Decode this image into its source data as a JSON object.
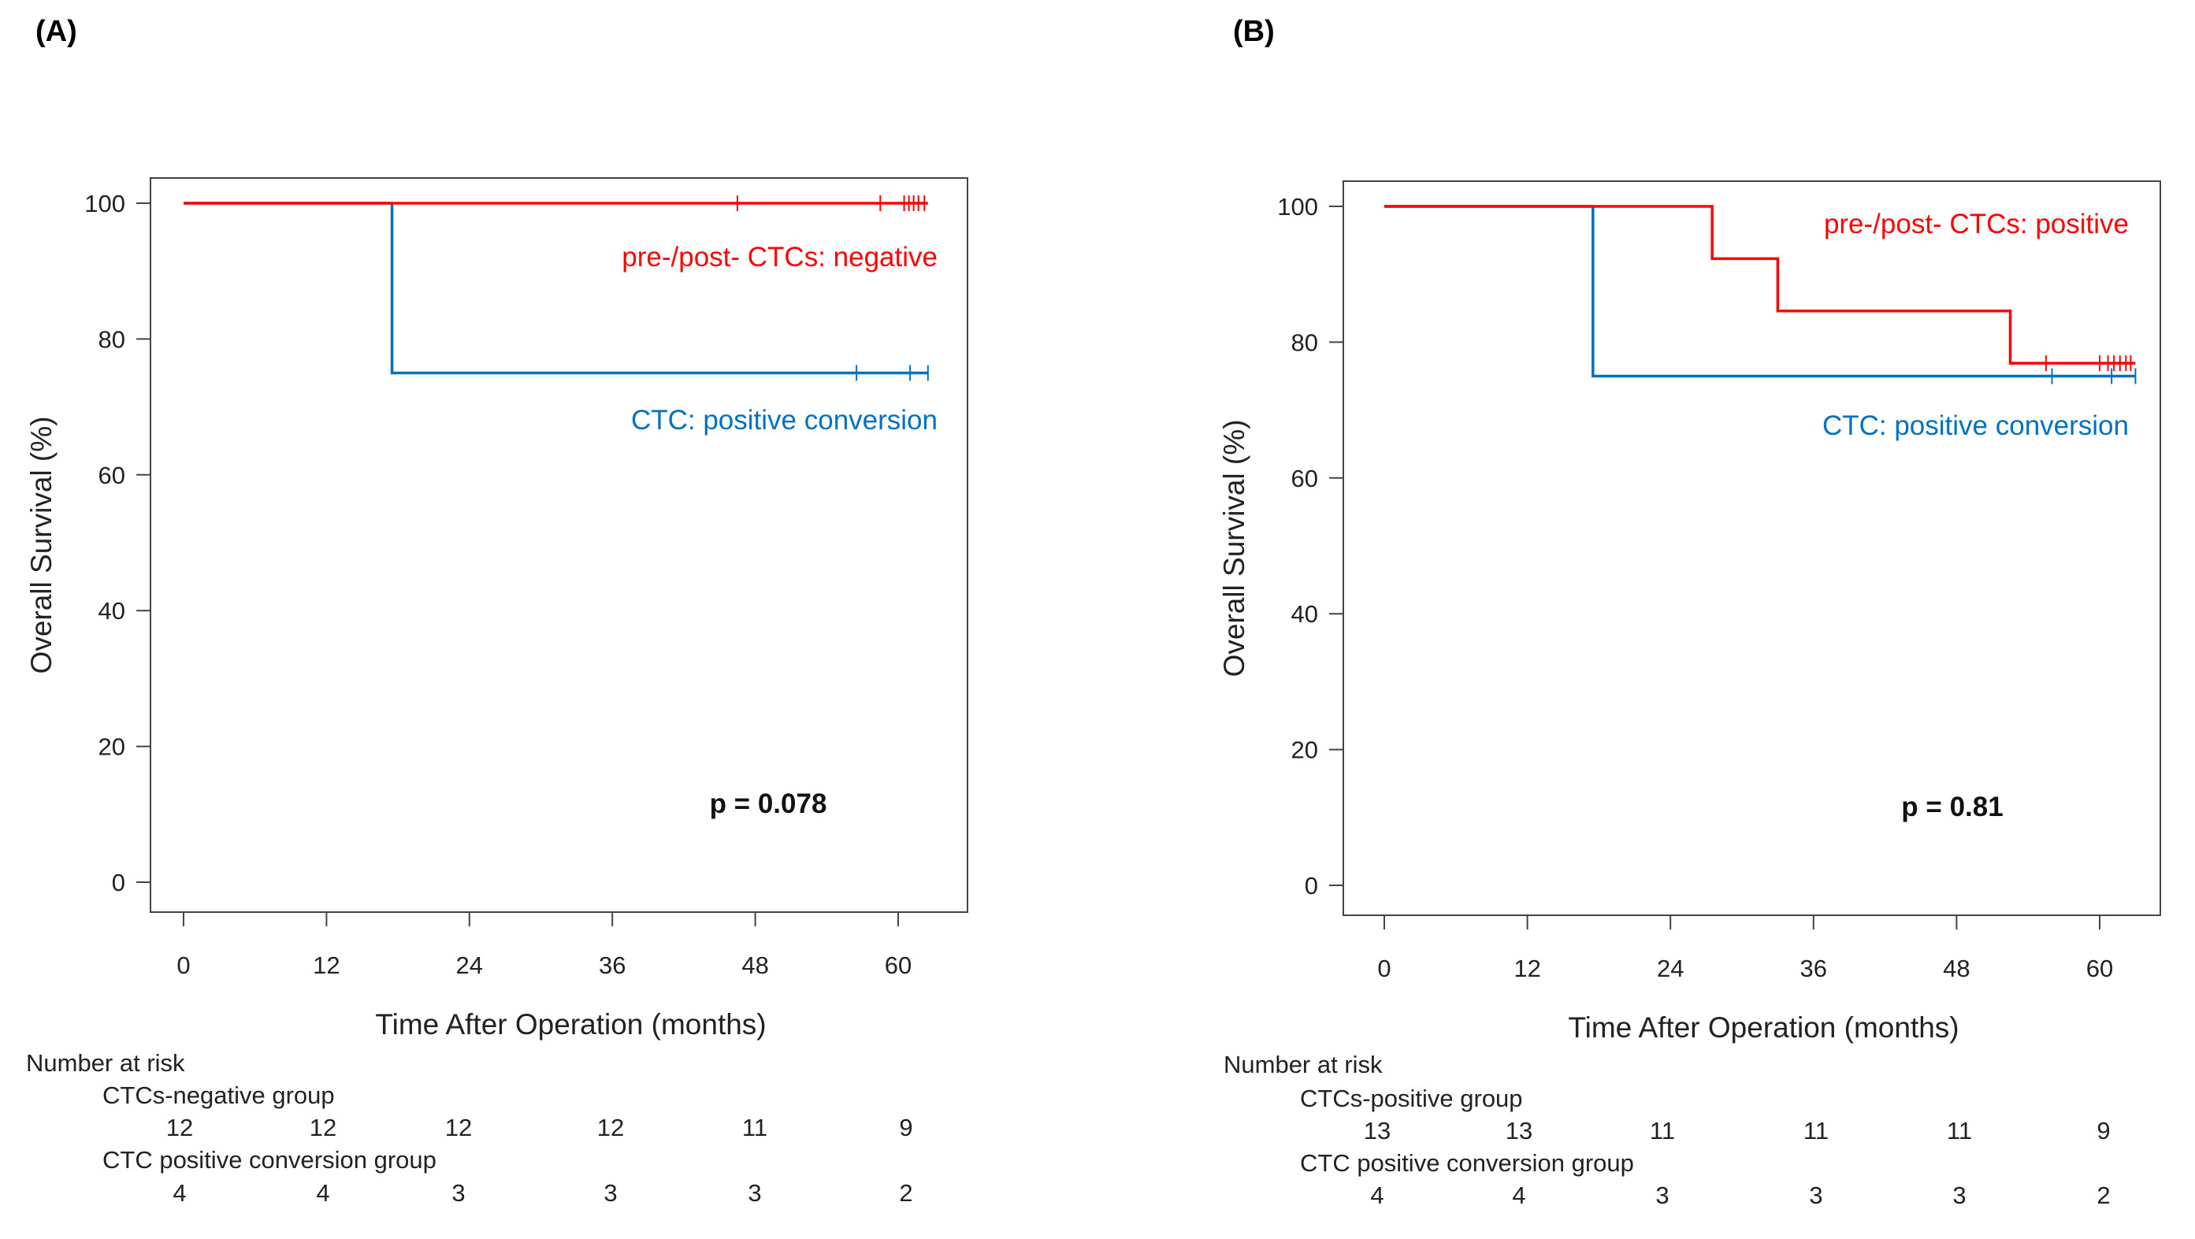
{
  "chart_data": [
    {
      "type": "line",
      "panel_label": "(A)",
      "title": "",
      "xlabel": "Time After Operation (months)",
      "ylabel": "Overall Survival (%)",
      "xlim": [
        0,
        62
      ],
      "ylim": [
        0,
        100
      ],
      "xticks": [
        0,
        12,
        24,
        36,
        48,
        60
      ],
      "yticks": [
        0,
        20,
        40,
        60,
        80,
        100
      ],
      "p_value": "p = 0.078",
      "series": [
        {
          "name": "pre-/post- CTCs: negative",
          "color": "#ff0000",
          "steps": [
            [
              0,
              100
            ],
            [
              62.5,
              100
            ]
          ],
          "censor_times": [
            46.5,
            58.5,
            60.5,
            60.9,
            61.3,
            61.7,
            62.2
          ]
        },
        {
          "name": "CTC: positive conversion",
          "color": "#0070c0",
          "steps": [
            [
              0,
              100
            ],
            [
              17.5,
              75
            ],
            [
              62.5,
              75
            ]
          ],
          "censor_times": [
            56.5,
            61,
            62.5
          ]
        }
      ],
      "risk_table": {
        "title": "Number at risk",
        "groups": [
          {
            "name": "CTCs-negative group",
            "counts": [
              "12",
              "12",
              "12",
              "12",
              "11",
              "9"
            ]
          },
          {
            "name": "CTC positive conversion  group",
            "counts": [
              "4",
              "4",
              "3",
              "3",
              "3",
              "2"
            ]
          }
        ]
      }
    },
    {
      "type": "line",
      "panel_label": "(B)",
      "title": "",
      "xlabel": "Time After Operation (months)",
      "ylabel": "Overall Survival (%)",
      "xlim": [
        0,
        62
      ],
      "ylim": [
        0,
        100
      ],
      "xticks": [
        0,
        12,
        24,
        36,
        48,
        60
      ],
      "yticks": [
        0,
        20,
        40,
        60,
        80,
        100
      ],
      "p_value": "p = 0.81",
      "series": [
        {
          "name": "pre-/post- CTCs: positive",
          "color": "#ff0000",
          "steps": [
            [
              0,
              100
            ],
            [
              27.5,
              92.3
            ],
            [
              33,
              84.6
            ],
            [
              52.5,
              76.9
            ],
            [
              63,
              76.9
            ]
          ],
          "censor_times": [
            55.5,
            60,
            60.7,
            61.2,
            61.7,
            62.2,
            62.6
          ]
        },
        {
          "name": "CTC: positive conversion",
          "color": "#0070c0",
          "steps": [
            [
              0,
              100
            ],
            [
              17.5,
              75
            ],
            [
              63,
              75
            ]
          ],
          "censor_times": [
            56,
            61,
            63
          ]
        }
      ],
      "risk_table": {
        "title": "Number at risk",
        "groups": [
          {
            "name": "CTCs-positive group",
            "counts": [
              "13",
              "13",
              "11",
              "11",
              "11",
              "9"
            ]
          },
          {
            "name": "CTC positive conversion  group",
            "counts": [
              "4",
              "4",
              "3",
              "3",
              "3",
              "2"
            ]
          }
        ]
      }
    }
  ]
}
